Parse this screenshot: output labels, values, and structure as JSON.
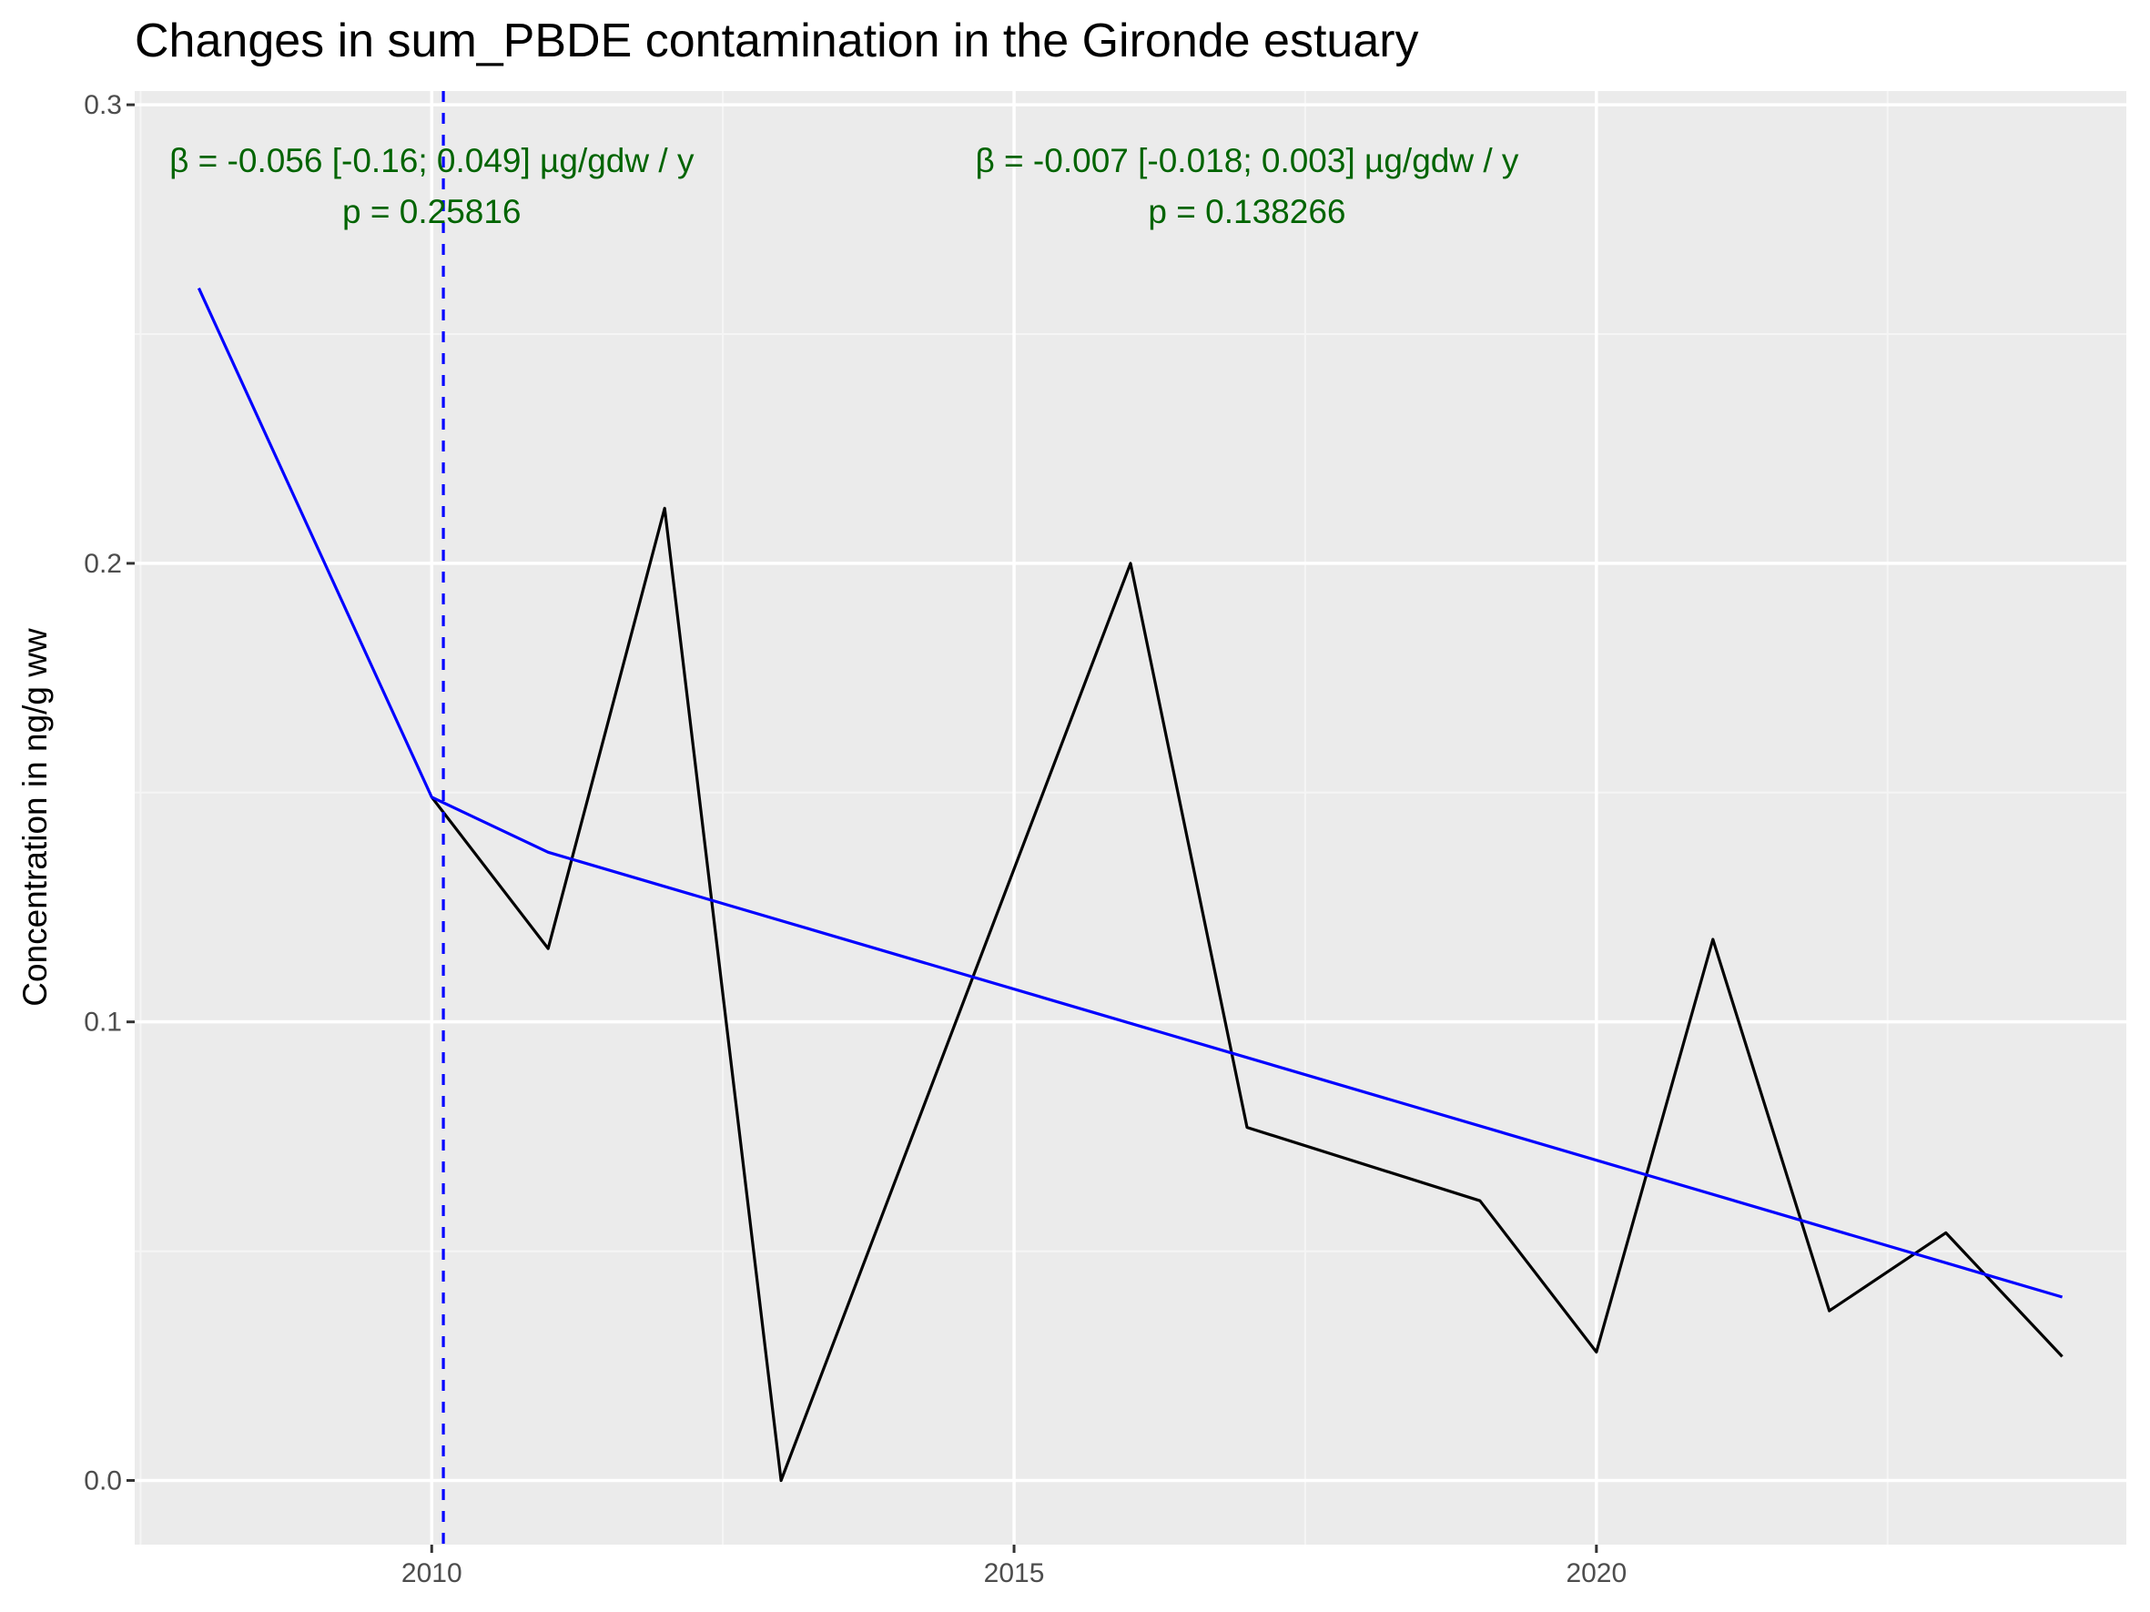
{
  "chart_data": {
    "type": "line",
    "title": "Changes in sum_PBDE contamination in the Gironde estuary",
    "xlabel": "",
    "ylabel": "Concentration in ng/g ww",
    "xlim": [
      2007.45,
      2024.55
    ],
    "ylim": [
      -0.014,
      0.303
    ],
    "x_ticks": [
      2010,
      2015,
      2020
    ],
    "x_tick_labels": [
      "2010",
      "2015",
      "2020"
    ],
    "y_ticks": [
      0.0,
      0.1,
      0.2,
      0.3
    ],
    "y_tick_labels": [
      "0.0",
      "0.1",
      "0.2",
      "0.3"
    ],
    "grid": true,
    "series": [
      {
        "role": "observed",
        "color": "#000000",
        "x": [
          2010,
          2011,
          2012,
          2013,
          2016,
          2017,
          2019,
          2020,
          2021,
          2022,
          2023,
          2024
        ],
        "y": [
          0.149,
          0.116,
          0.212,
          0.0,
          0.2,
          0.077,
          0.061,
          0.028,
          0.118,
          0.037,
          0.054,
          0.027
        ]
      },
      {
        "role": "trend",
        "color": "#0000ff",
        "x": [
          2008,
          2010,
          2011,
          2024
        ],
        "y": [
          0.26,
          0.149,
          0.137,
          0.04
        ]
      }
    ],
    "breakpoint": {
      "x": 2010.1,
      "color": "#0000ff",
      "style": "dashed"
    },
    "annotations": [
      {
        "x": 2010.0,
        "y": 0.2835,
        "line1": "β = -0.056 [-0.16; 0.049] µg/gdw / y",
        "line2": "p = 0.25816",
        "color": "#006400"
      },
      {
        "x": 2017.0,
        "y": 0.2835,
        "line1": "β = -0.007 [-0.018; 0.003] µg/gdw / y",
        "line2": "p = 0.138266",
        "color": "#006400"
      }
    ]
  },
  "colors": {
    "panel_background": "#ebebeb",
    "grid_major": "#ffffff",
    "grid_minor": "#f5f5f5",
    "tick_mark": "#333333",
    "tick_text": "#4d4d4d"
  }
}
